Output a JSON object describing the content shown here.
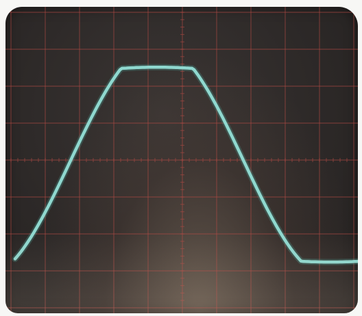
{
  "scene": {
    "subject": "oscilloscope-screen",
    "colors": {
      "screen_background": "#2d2928",
      "graticule": "#b04a44",
      "trace": "#8fd8cf",
      "trace_glow": "#4fb6ad"
    },
    "graticule": {
      "divisions_x": 10,
      "divisions_y": 8,
      "minor_ticks_per_division": 5
    },
    "trace": {
      "shape": "clipped-sine-wave"
    }
  }
}
